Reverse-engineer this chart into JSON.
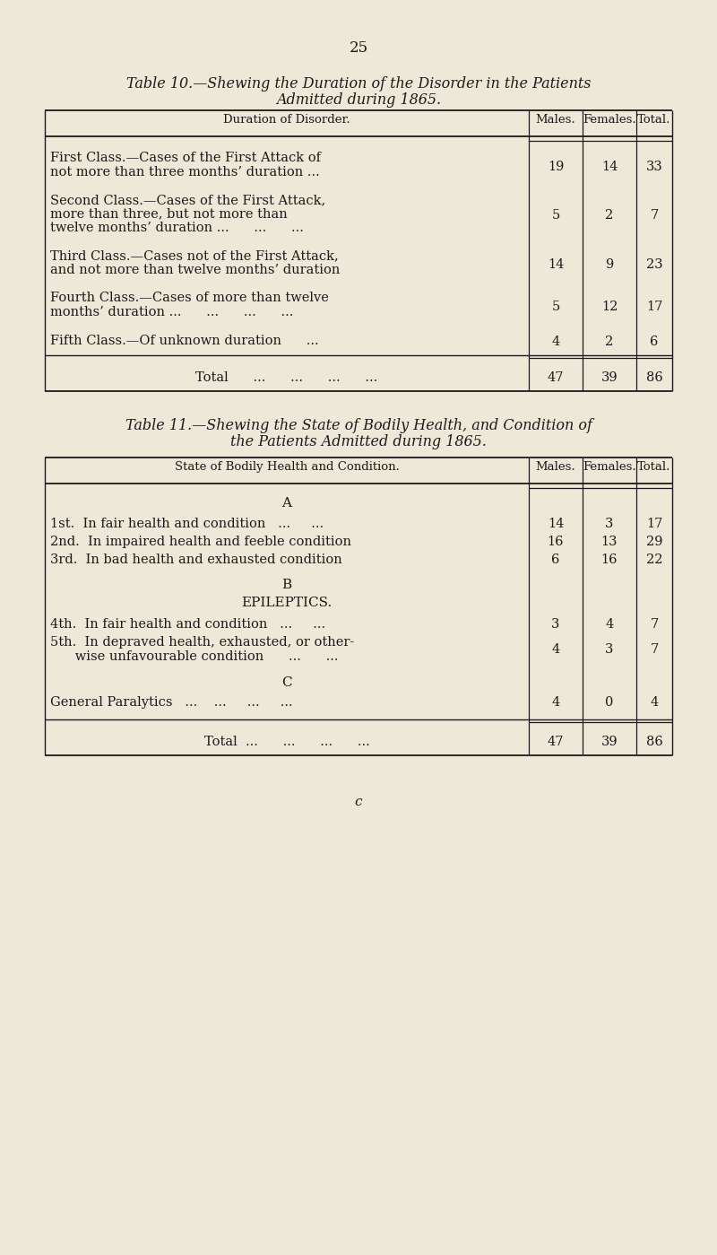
{
  "bg_color": "#ede8d8",
  "text_color": "#1a1a1a",
  "line_color": "#1a1a1a",
  "page_number": "25",
  "table10": {
    "title_line1": "Table 10.—Shewing the Duration of the Disorder in the Patients",
    "title_line2": "Admitted during 1865.",
    "col_headers": [
      "Duration of Disorder.",
      "Males.",
      "Females.",
      "Total."
    ],
    "rows": [
      {
        "label_lines": [
          "First Class.—Cases of the First Attack of",
          "not more than three months’ duration ..."
        ],
        "males": "19",
        "females": "14",
        "total": "33"
      },
      {
        "label_lines": [
          "Second Class.—Cases of the First Attack,",
          "more than three, but not more than",
          "twelve months’ duration ...      ...      ..."
        ],
        "males": "5",
        "females": "2",
        "total": "7"
      },
      {
        "label_lines": [
          "Third Class.—Cases not of the First Attack,",
          "and not more than twelve months’ duration"
        ],
        "males": "14",
        "females": "9",
        "total": "23"
      },
      {
        "label_lines": [
          "Fourth Class.—Cases of more than twelve",
          "months’ duration ...      ...      ...      ..."
        ],
        "males": "5",
        "females": "12",
        "total": "17"
      },
      {
        "label_lines": [
          "Fifth Class.—Of unknown duration      ..."
        ],
        "males": "4",
        "females": "2",
        "total": "6"
      }
    ],
    "total_label": "Total      ...      ...      ...      ...",
    "total_males": "47",
    "total_females": "39",
    "total_total": "86"
  },
  "table11": {
    "title_line1": "Table 11.—Shewing the State of Bodily Health, and Condition of",
    "title_line2": "the Patients Admitted during 1865.",
    "col_headers": [
      "State of Bodily Health and Condition.",
      "Males.",
      "Females.",
      "Total."
    ],
    "section_a": "A",
    "rows_a": [
      {
        "label": "1st.  In fair health and condition   ...     ...",
        "males": "14",
        "females": "3",
        "total": "17"
      },
      {
        "label": "2nd.  In impaired health and feeble condition",
        "males": "16",
        "females": "13",
        "total": "29"
      },
      {
        "label": "3rd.  In bad health and exhausted condition",
        "males": "6",
        "females": "16",
        "total": "22"
      }
    ],
    "section_b": "B",
    "section_b_sub": "EPILEPTICS.",
    "rows_b": [
      {
        "label": "4th.  In fair health and condition   ...     ...",
        "males": "3",
        "females": "4",
        "total": "7"
      },
      {
        "label_lines": [
          "5th.  In depraved health, exhausted, or other-",
          "      wise unfavourable condition      ...      ..."
        ],
        "males": "4",
        "females": "3",
        "total": "7"
      }
    ],
    "section_c": "C",
    "rows_c": [
      {
        "label": "General Paralytics   ...    ...     ...     ...",
        "males": "4",
        "females": "0",
        "total": "4"
      }
    ],
    "total_label": "Total  ...      ...      ...      ...",
    "total_males": "47",
    "total_females": "39",
    "total_total": "86"
  },
  "footer": "c"
}
